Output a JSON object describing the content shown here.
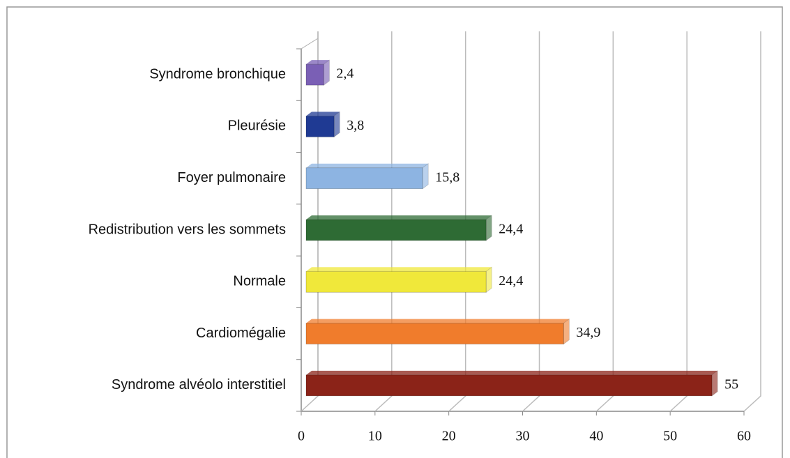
{
  "chart_data": {
    "type": "bar",
    "orientation": "horizontal",
    "categories": [
      "Syndrome bronchique",
      "Pleurésie",
      "Foyer pulmonaire",
      "Redistribution vers les sommets",
      "Normale",
      "Cardiomégalie",
      "Syndrome alvéolo interstitiel"
    ],
    "values": [
      2.4,
      3.8,
      15.8,
      24.4,
      24.4,
      34.9,
      55
    ],
    "value_labels": [
      "2,4",
      "3,8",
      "15,8",
      "24,4",
      "24,4",
      "34,9",
      "55"
    ],
    "colors": [
      "#7a5fb5",
      "#1f3a93",
      "#8db4e2",
      "#2e6b34",
      "#f0e83a",
      "#f07c2c",
      "#8b2318"
    ],
    "xlim": [
      0,
      60
    ],
    "xticks": [
      0,
      10,
      20,
      30,
      40,
      50,
      60
    ],
    "grid": true
  }
}
